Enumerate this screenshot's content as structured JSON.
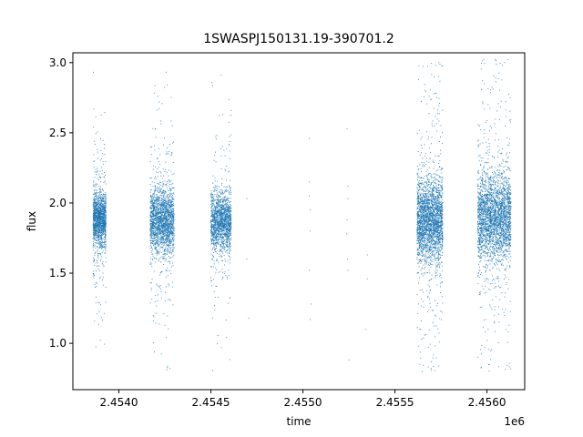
{
  "chart_data": {
    "type": "scatter",
    "title": "1SWASPJ150131.19-390701.2",
    "xlabel": "time",
    "ylabel": "flux",
    "x_offset_label": "1e6",
    "xlim": [
      2453750,
      2456205
    ],
    "ylim": [
      0.67,
      3.07
    ],
    "x_ticks": [
      2454000,
      2454500,
      2455000,
      2455500,
      2456000
    ],
    "x_tick_labels": [
      "2.4540",
      "2.4545",
      "2.4550",
      "2.4555",
      "2.4560"
    ],
    "y_ticks": [
      1.0,
      1.5,
      2.0,
      2.5,
      3.0
    ],
    "y_tick_labels": [
      "1.0",
      "1.5",
      "2.0",
      "2.5",
      "3.0"
    ],
    "grid": false,
    "legend": "none",
    "series_color": "#1f77b4",
    "clusters": [
      {
        "x_start": 2453860,
        "x_end": 2453930,
        "center": 1.88,
        "core_spread": 0.16,
        "y_min": 0.79,
        "y_max": 2.95,
        "points": 1500
      },
      {
        "x_start": 2454170,
        "x_end": 2454300,
        "center": 1.87,
        "core_spread": 0.2,
        "y_min": 0.78,
        "y_max": 2.97,
        "points": 2000
      },
      {
        "x_start": 2454500,
        "x_end": 2454610,
        "center": 1.87,
        "core_spread": 0.17,
        "y_min": 0.8,
        "y_max": 2.95,
        "points": 1600
      },
      {
        "x_start": 2455620,
        "x_end": 2455760,
        "center": 1.87,
        "core_spread": 0.24,
        "y_min": 0.8,
        "y_max": 3.02,
        "points": 2600
      },
      {
        "x_start": 2455950,
        "x_end": 2456130,
        "center": 1.9,
        "core_spread": 0.26,
        "y_min": 0.8,
        "y_max": 3.03,
        "points": 2800
      }
    ],
    "sparse_points": [
      {
        "x": 2454695,
        "y": 2.03
      },
      {
        "x": 2454695,
        "y": 1.6
      },
      {
        "x": 2454705,
        "y": 1.18
      },
      {
        "x": 2455035,
        "y": 2.46
      },
      {
        "x": 2455035,
        "y": 2.15
      },
      {
        "x": 2455035,
        "y": 2.05
      },
      {
        "x": 2455040,
        "y": 1.95
      },
      {
        "x": 2455040,
        "y": 1.8
      },
      {
        "x": 2455035,
        "y": 1.52
      },
      {
        "x": 2455045,
        "y": 1.28
      },
      {
        "x": 2455040,
        "y": 1.17
      },
      {
        "x": 2455240,
        "y": 2.53
      },
      {
        "x": 2455245,
        "y": 2.12
      },
      {
        "x": 2455245,
        "y": 2.03
      },
      {
        "x": 2455240,
        "y": 1.88
      },
      {
        "x": 2455238,
        "y": 1.78
      },
      {
        "x": 2455242,
        "y": 1.6
      },
      {
        "x": 2455245,
        "y": 1.52
      },
      {
        "x": 2455250,
        "y": 0.88
      },
      {
        "x": 2455350,
        "y": 1.63
      },
      {
        "x": 2455350,
        "y": 1.46
      },
      {
        "x": 2455340,
        "y": 1.1
      }
    ]
  }
}
